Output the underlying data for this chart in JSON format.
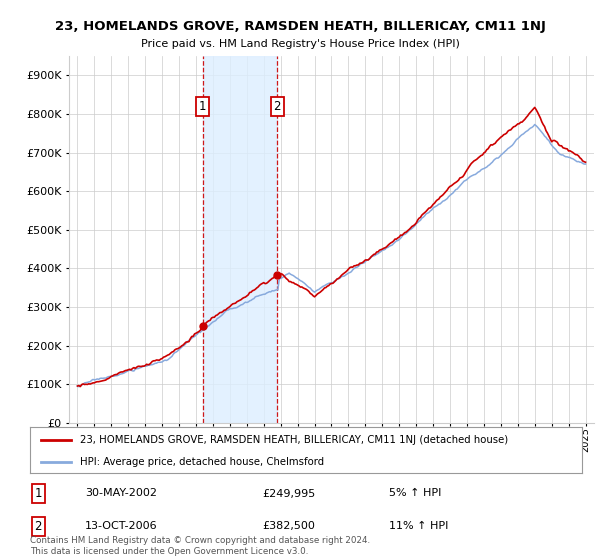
{
  "title": "23, HOMELANDS GROVE, RAMSDEN HEATH, BILLERICAY, CM11 1NJ",
  "subtitle": "Price paid vs. HM Land Registry's House Price Index (HPI)",
  "property_label": "23, HOMELANDS GROVE, RAMSDEN HEATH, BILLERICAY, CM11 1NJ (detached house)",
  "hpi_label": "HPI: Average price, detached house, Chelmsford",
  "footer": "Contains HM Land Registry data © Crown copyright and database right 2024.\nThis data is licensed under the Open Government Licence v3.0.",
  "transaction1_date": "30-MAY-2002",
  "transaction1_price": "£249,995",
  "transaction1_hpi": "5% ↑ HPI",
  "transaction1_year": 2002.4,
  "transaction2_date": "13-OCT-2006",
  "transaction2_price": "£382,500",
  "transaction2_hpi": "11% ↑ HPI",
  "transaction2_year": 2006.8,
  "property_color": "#cc0000",
  "hpi_color": "#88aadd",
  "shade_color": "#ddeeff",
  "vline_color": "#cc0000",
  "ylim": [
    0,
    950000
  ],
  "yticks": [
    0,
    100000,
    200000,
    300000,
    400000,
    500000,
    600000,
    700000,
    800000,
    900000
  ],
  "background_color": "#ffffff",
  "grid_color": "#cccccc"
}
